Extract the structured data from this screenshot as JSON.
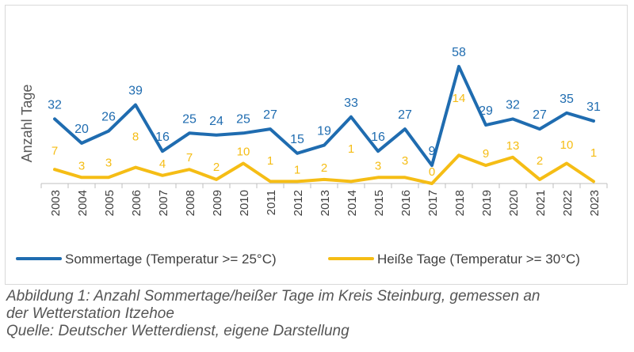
{
  "chart_data": {
    "type": "line",
    "title": "",
    "xlabel": "",
    "ylabel": "Anzahl Tage",
    "ylim": [
      0,
      60
    ],
    "grid": false,
    "legend_position": "bottom",
    "x": [
      "2003",
      "2004",
      "2005",
      "2006",
      "2007",
      "2008",
      "2009",
      "2010",
      "2011",
      "2012",
      "2013",
      "2014",
      "2015",
      "2016",
      "2017",
      "2018",
      "2019",
      "2020",
      "2021",
      "2022",
      "2023"
    ],
    "series": [
      {
        "name": "Sommertage (Temperatur >= 25°C)",
        "color": "#1f6cb0",
        "values": [
          32,
          20,
          26,
          39,
          16,
          25,
          24,
          25,
          27,
          15,
          19,
          33,
          16,
          27,
          9,
          58,
          29,
          32,
          27,
          35,
          31
        ]
      },
      {
        "name": "Heiße Tage (Temperatur >= 30°C)",
        "color": "#f5bd15",
        "values": [
          7,
          3,
          3,
          8,
          4,
          7,
          2,
          10,
          1,
          1,
          2,
          1,
          3,
          3,
          0,
          14,
          9,
          13,
          2,
          10,
          1
        ]
      }
    ]
  },
  "caption": {
    "line1": "Abbildung 1: Anzahl Sommertage/heißer Tage im Kreis Steinburg, gemessen an",
    "line2": "der Wetterstation Itzehoe",
    "line3": "Quelle: Deutscher Wetterdienst, eigene Darstellung"
  }
}
